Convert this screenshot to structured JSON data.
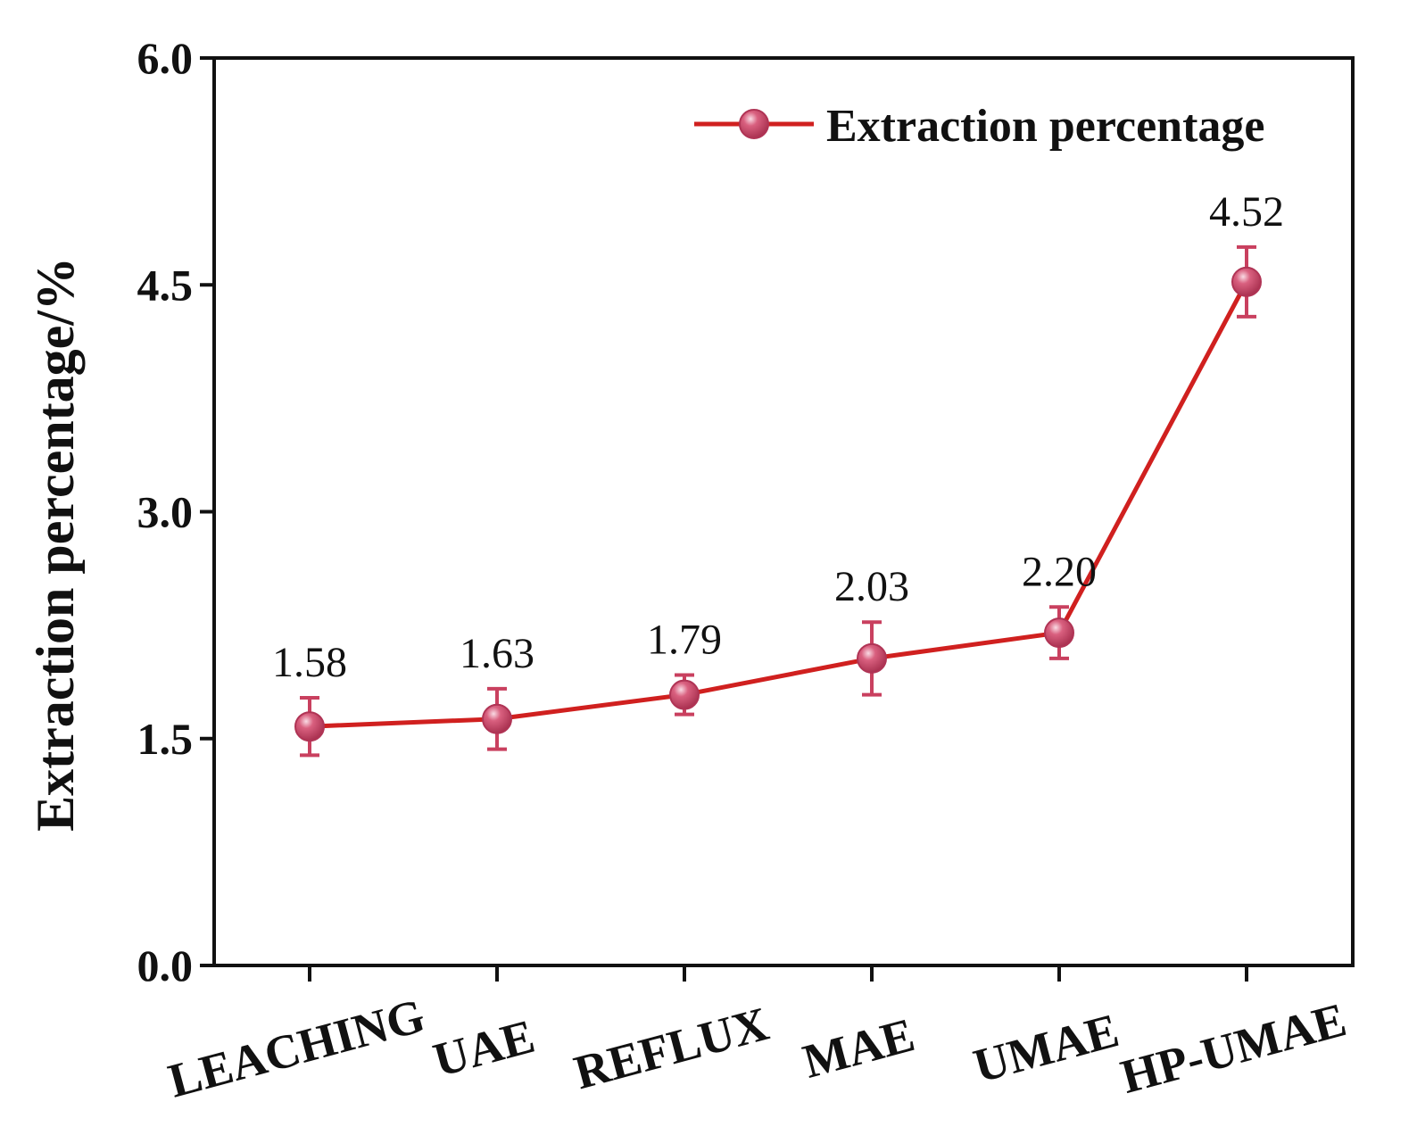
{
  "chart_data": {
    "type": "line",
    "title": "",
    "xlabel": "",
    "ylabel": "Extraction percentage/%",
    "ylim": [
      0,
      6
    ],
    "yticks": [
      "0.0",
      "1.5",
      "3.0",
      "4.5",
      "6.0"
    ],
    "categories": [
      "LEACHING",
      "UAE",
      "REFLUX",
      "MAE",
      "UMAE",
      "HP-UMAE"
    ],
    "series": [
      {
        "name": "Extraction percentage",
        "values": [
          1.58,
          1.63,
          1.79,
          2.03,
          2.2,
          4.52
        ],
        "errors": [
          0.19,
          0.2,
          0.13,
          0.24,
          0.17,
          0.23
        ],
        "labels": [
          "1.58",
          "1.63",
          "1.79",
          "2.03",
          "2.20",
          "4.52"
        ]
      }
    ],
    "legend": {
      "position": "top-right"
    },
    "grid": false
  },
  "colors": {
    "line": "#d0201f",
    "marker": "#c9405f",
    "marker_highlight": "#f4c4d2",
    "axis": "#111111"
  }
}
